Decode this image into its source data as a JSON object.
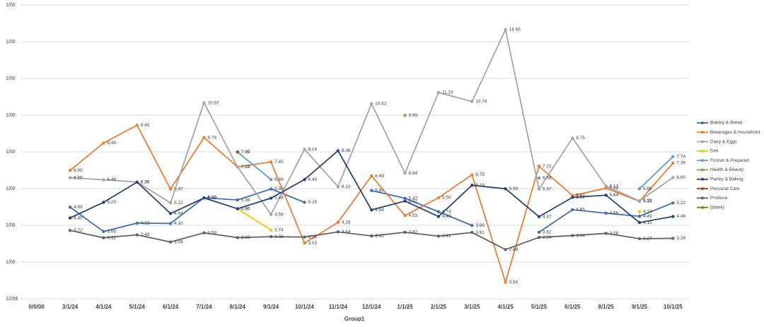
{
  "chart_data": {
    "type": "line",
    "x_label": "Group1",
    "categories": [
      "0/0/00",
      "3/1/24",
      "4/1/24",
      "5/1/24",
      "6/1/24",
      "7/1/24",
      "8/1/24",
      "9/1/24",
      "10/1/24",
      "11/1/24",
      "12/1/24",
      "1/1/25",
      "2/1/25",
      "3/1/25",
      "4/1/25",
      "5/1/25",
      "6/1/25",
      "8/1/25",
      "9/1/25",
      "10/1/25"
    ],
    "ylim": [
      0,
      16
    ],
    "yticks": [
      {
        "value": 0,
        "label": "12/99"
      },
      {
        "value": 2,
        "label": "1/00"
      },
      {
        "value": 4,
        "label": "1/00"
      },
      {
        "value": 6,
        "label": "1/00"
      },
      {
        "value": 8,
        "label": "1/00"
      },
      {
        "value": 10,
        "label": "1/00"
      },
      {
        "value": 12,
        "label": "1/00"
      },
      {
        "value": 14,
        "label": "1/00"
      },
      {
        "value": 16,
        "label": "1/00"
      }
    ],
    "grid": true,
    "legend": "right",
    "series": [
      {
        "name": "Bakery & Bread",
        "color": "#3d6fb6",
        "values": [
          null,
          4.99,
          3.66,
          4.12,
          4.1,
          5.5,
          5.38,
          5.98,
          5.25,
          null,
          5.89,
          5.47,
          4.74,
          3.99,
          null,
          3.62,
          4.85,
          4.66,
          4.49,
          5.22
        ],
        "value_labels": [
          null,
          "4.99",
          "3.66",
          "4.12",
          "4.10",
          "5.50",
          "5.38",
          "5.98",
          "5.25",
          null,
          "5.89",
          "5.47",
          "4.74",
          "3.99",
          null,
          "3.62",
          "4.85",
          "4.66",
          "4.49",
          "5.22"
        ]
      },
      {
        "name": "Beverages & Household",
        "color": "#ed7d31",
        "values": [
          null,
          6.99,
          8.48,
          9.45,
          5.97,
          8.78,
          7.18,
          7.45,
          3.03,
          4.16,
          6.69,
          4.53,
          5.5,
          6.75,
          0.9,
          7.22,
          5.62,
          6.02,
          5.31,
          7.39
        ],
        "value_labels": [
          null,
          "6.99",
          "8.48",
          "9.45",
          "5.97",
          "8.78",
          "7.18",
          "7.45",
          "3.03",
          "4.16",
          "6.69",
          "4.53",
          "5.50",
          "6.75",
          "0.90",
          "7.22",
          "5.62",
          "6.02",
          "5.31",
          "7.39"
        ]
      },
      {
        "name": "Dairy & Eggs",
        "color": "#a5a5a5",
        "values": [
          null,
          6.59,
          6.48,
          6.36,
          5.22,
          10.67,
          7.18,
          4.59,
          8.14,
          6.1,
          10.62,
          6.84,
          11.23,
          10.74,
          14.66,
          5.97,
          8.75,
          6.13,
          5.33,
          6.6
        ],
        "value_labels": [
          null,
          "6.59",
          "6.48",
          "6.36",
          "5.22",
          "10.67",
          "7.18",
          "4.59",
          "8.14",
          "6.10",
          "10.62",
          "6.84",
          "11.23",
          "10.74",
          "14.66",
          "5.97",
          "8.75",
          "6.13",
          "5.33",
          "6.60"
        ]
      },
      {
        "name": "Deli",
        "color": "#ffc000",
        "values": [
          null,
          null,
          null,
          null,
          null,
          null,
          4.9,
          3.74,
          null,
          null,
          null,
          null,
          null,
          null,
          null,
          null,
          null,
          null,
          4.74,
          null
        ],
        "value_labels": [
          null,
          null,
          null,
          null,
          null,
          null,
          "4.90",
          "3.74",
          null,
          null,
          null,
          null,
          null,
          null,
          null,
          null,
          null,
          null,
          "4.74",
          null
        ]
      },
      {
        "name": "Frozen & Prepared",
        "color": "#5b9bd5",
        "values": [
          null,
          null,
          null,
          null,
          null,
          null,
          7.99,
          6.49,
          null,
          null,
          null,
          null,
          null,
          null,
          null,
          6.58,
          null,
          null,
          5.99,
          7.74
        ],
        "value_labels": [
          null,
          null,
          null,
          null,
          null,
          null,
          "7.99",
          "6.49",
          null,
          null,
          null,
          null,
          null,
          null,
          null,
          "6.58",
          null,
          null,
          "5.99",
          "7.74"
        ]
      },
      {
        "name": "Health & Beauty",
        "color": "#70ad47",
        "values": [
          null,
          null,
          null,
          null,
          null,
          null,
          null,
          null,
          null,
          null,
          null,
          9.99,
          null,
          null,
          null,
          null,
          null,
          null,
          null,
          null
        ],
        "value_labels": [
          null,
          null,
          null,
          null,
          null,
          null,
          null,
          null,
          null,
          null,
          null,
          "9.99",
          null,
          null,
          null,
          null,
          null,
          null,
          null,
          null
        ]
      },
      {
        "name": "Pantry & Baking",
        "color": "#264478",
        "values": [
          null,
          4.4,
          5.25,
          6.35,
          4.64,
          5.49,
          4.9,
          5.48,
          6.49,
          8.06,
          4.84,
          5.32,
          4.48,
          6.18,
          5.99,
          4.47,
          5.52,
          5.64,
          4.15,
          4.48
        ],
        "value_labels": [
          null,
          "4.40",
          "5.25",
          "6.35",
          "4.64",
          "5.49",
          "4.90",
          "5.48",
          "6.49",
          "8.06",
          "4.84",
          "5.32",
          "4.48",
          "6.18",
          "5.99",
          "4.47",
          "5.52",
          "5.64",
          "4.15",
          "4.48"
        ]
      },
      {
        "name": "Personal Care",
        "color": "#9e480e",
        "values": [
          null,
          null,
          null,
          null,
          null,
          null,
          7.99,
          null,
          null,
          null,
          null,
          null,
          null,
          null,
          null,
          null,
          null,
          null,
          null,
          null
        ],
        "value_labels": [
          null,
          null,
          null,
          null,
          null,
          null,
          "7.99",
          null,
          null,
          null,
          null,
          null,
          null,
          null,
          null,
          null,
          null,
          null,
          null,
          null
        ]
      },
      {
        "name": "Produce",
        "color": "#636363",
        "values": [
          null,
          3.72,
          3.32,
          3.48,
          3.09,
          3.59,
          3.33,
          3.38,
          3.36,
          3.64,
          3.42,
          3.62,
          3.41,
          3.61,
          2.68,
          3.34,
          3.44,
          3.56,
          3.27,
          3.29
        ],
        "value_labels": [
          null,
          "3.72",
          "3.32",
          "3.48",
          "3.09",
          "3.59",
          "3.33",
          "3.38",
          "3.36",
          "3.64",
          "3.42",
          "3.62",
          "3.41",
          "3.61",
          "2.68",
          "3.34",
          "3.44",
          "3.56",
          "3.27",
          "3.29"
        ]
      },
      {
        "name": "(blank)",
        "color": "#997300",
        "values": [
          null,
          null,
          null,
          null,
          null,
          null,
          null,
          null,
          null,
          null,
          null,
          null,
          null,
          null,
          null,
          null,
          null,
          null,
          null,
          null
        ]
      }
    ]
  }
}
